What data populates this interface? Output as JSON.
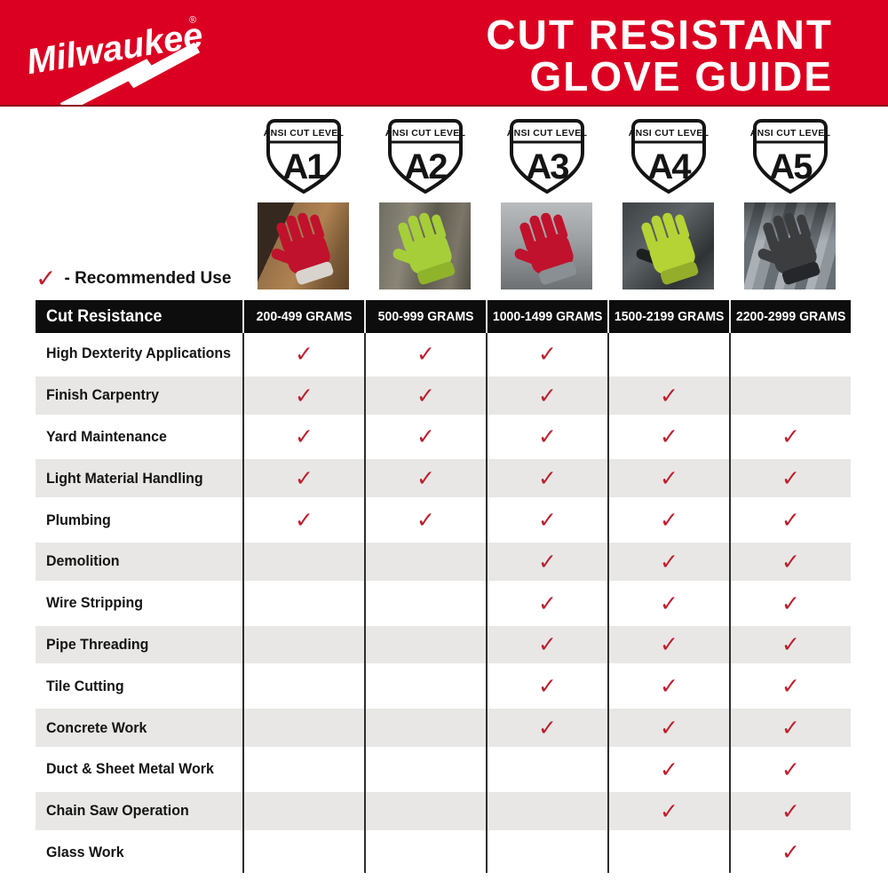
{
  "banner": {
    "logo_text": "Milwaukee",
    "logo_reg": "®",
    "title_line1": "CUT RESISTANT",
    "title_line2": "GLOVE GUIDE"
  },
  "legend": {
    "label": "- Recommended Use"
  },
  "symbols": {
    "check": "✓"
  },
  "colors": {
    "brand_red": "#DB0021",
    "check_red": "#BE1E2D",
    "header_black": "#0D0D0D",
    "row_gray": "#E8E7E5",
    "hi_vis_green": "#A6CE39",
    "glove_red": "#C0122C"
  },
  "levels": [
    {
      "badge_label": "ANSI CUT LEVEL",
      "level": "A1",
      "photo_subject": "red nitrile-dipped glove drilling into lumber"
    },
    {
      "badge_label": "ANSI CUT LEVEL",
      "level": "A2",
      "photo_subject": "high-visibility green glove gripping weathered wood"
    },
    {
      "badge_label": "ANSI CUT LEVEL",
      "level": "A3",
      "photo_subject": "red glove holding pliers over metal"
    },
    {
      "badge_label": "ANSI CUT LEVEL",
      "level": "A4",
      "photo_subject": "high-visibility glove with black grip lifting steel"
    },
    {
      "badge_label": "ANSI CUT LEVEL",
      "level": "A5",
      "photo_subject": "dark gray glove handling galvanized duct"
    }
  ],
  "table": {
    "header": [
      "Cut Resistance",
      "200-499 GRAMS",
      "500-999 GRAMS",
      "1000-1499 GRAMS",
      "1500-2199 GRAMS",
      "2200-2999 GRAMS"
    ],
    "rows": [
      {
        "label": "High Dexterity Applications",
        "checks": [
          true,
          true,
          true,
          false,
          false
        ]
      },
      {
        "label": "Finish Carpentry",
        "checks": [
          true,
          true,
          true,
          true,
          false
        ]
      },
      {
        "label": "Yard Maintenance",
        "checks": [
          true,
          true,
          true,
          true,
          true
        ]
      },
      {
        "label": "Light Material Handling",
        "checks": [
          true,
          true,
          true,
          true,
          true
        ]
      },
      {
        "label": "Plumbing",
        "checks": [
          true,
          true,
          true,
          true,
          true
        ]
      },
      {
        "label": "Demolition",
        "checks": [
          false,
          false,
          true,
          true,
          true
        ]
      },
      {
        "label": "Wire Stripping",
        "checks": [
          false,
          false,
          true,
          true,
          true
        ]
      },
      {
        "label": "Pipe Threading",
        "checks": [
          false,
          false,
          true,
          true,
          true
        ]
      },
      {
        "label": "Tile Cutting",
        "checks": [
          false,
          false,
          true,
          true,
          true
        ]
      },
      {
        "label": "Concrete Work",
        "checks": [
          false,
          false,
          true,
          true,
          true
        ]
      },
      {
        "label": "Duct & Sheet Metal Work",
        "checks": [
          false,
          false,
          false,
          true,
          true
        ]
      },
      {
        "label": "Chain Saw Operation",
        "checks": [
          false,
          false,
          false,
          true,
          true
        ]
      },
      {
        "label": "Glass Work",
        "checks": [
          false,
          false,
          false,
          false,
          true
        ]
      }
    ]
  },
  "chart_data": {
    "type": "table",
    "title": "CUT RESISTANT GLOVE GUIDE",
    "columns": [
      "Cut Resistance",
      "200-499 GRAMS",
      "500-999 GRAMS",
      "1000-1499 GRAMS",
      "1500-2199 GRAMS",
      "2200-2999 GRAMS"
    ],
    "cut_levels": [
      "A1",
      "A2",
      "A3",
      "A4",
      "A5"
    ],
    "gram_ranges": [
      "200-499",
      "500-999",
      "1000-1499",
      "1500-2199",
      "2200-2999"
    ],
    "legend": "✓ - Recommended Use",
    "rows": [
      {
        "label": "High Dexterity Applications",
        "recommended_levels": [
          "A1",
          "A2",
          "A3"
        ]
      },
      {
        "label": "Finish Carpentry",
        "recommended_levels": [
          "A1",
          "A2",
          "A3",
          "A4"
        ]
      },
      {
        "label": "Yard Maintenance",
        "recommended_levels": [
          "A1",
          "A2",
          "A3",
          "A4",
          "A5"
        ]
      },
      {
        "label": "Light Material Handling",
        "recommended_levels": [
          "A1",
          "A2",
          "A3",
          "A4",
          "A5"
        ]
      },
      {
        "label": "Plumbing",
        "recommended_levels": [
          "A1",
          "A2",
          "A3",
          "A4",
          "A5"
        ]
      },
      {
        "label": "Demolition",
        "recommended_levels": [
          "A3",
          "A4",
          "A5"
        ]
      },
      {
        "label": "Wire Stripping",
        "recommended_levels": [
          "A3",
          "A4",
          "A5"
        ]
      },
      {
        "label": "Pipe Threading",
        "recommended_levels": [
          "A3",
          "A4",
          "A5"
        ]
      },
      {
        "label": "Tile Cutting",
        "recommended_levels": [
          "A3",
          "A4",
          "A5"
        ]
      },
      {
        "label": "Concrete Work",
        "recommended_levels": [
          "A3",
          "A4",
          "A5"
        ]
      },
      {
        "label": "Duct & Sheet Metal Work",
        "recommended_levels": [
          "A4",
          "A5"
        ]
      },
      {
        "label": "Chain Saw Operation",
        "recommended_levels": [
          "A4",
          "A5"
        ]
      },
      {
        "label": "Glass Work",
        "recommended_levels": [
          "A5"
        ]
      }
    ]
  }
}
